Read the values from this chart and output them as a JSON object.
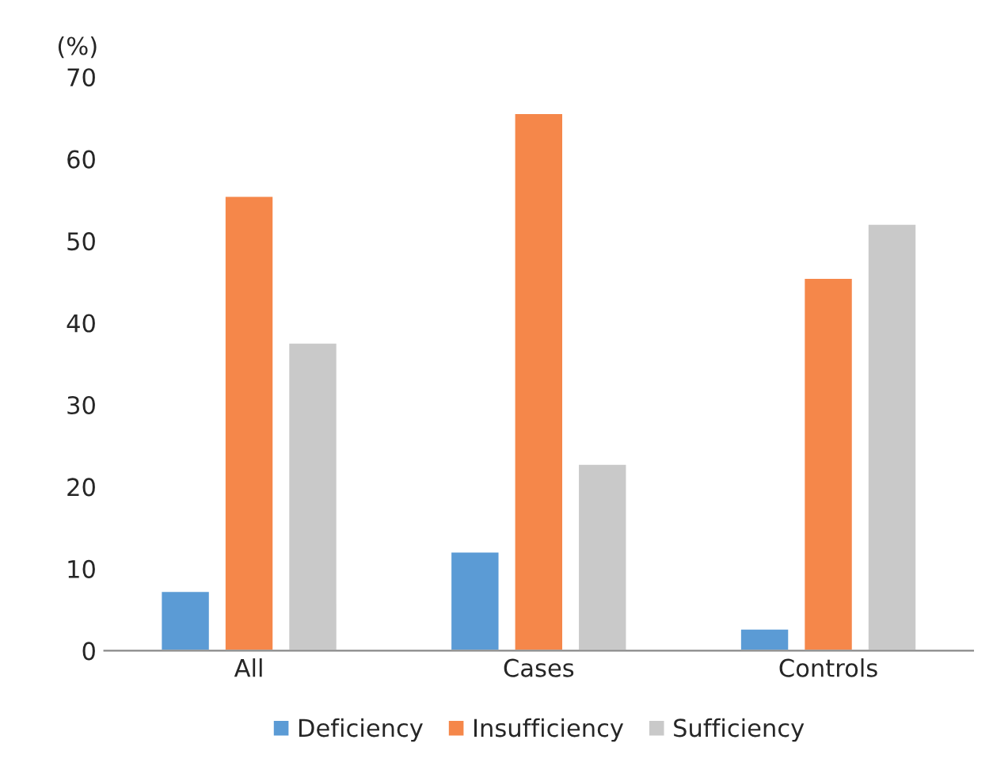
{
  "chart_data": {
    "type": "bar",
    "ylabel": "(%)",
    "categories": [
      "All",
      "Cases",
      "Controls"
    ],
    "series": [
      {
        "name": "Deficiency",
        "color": "#5b9bd5",
        "values": [
          7.3,
          12.1,
          2.7
        ]
      },
      {
        "name": "Insufficiency",
        "color": "#f5874a",
        "values": [
          55.5,
          65.6,
          45.5
        ]
      },
      {
        "name": "Sufficiency",
        "color": "#c9c9c9",
        "values": [
          37.6,
          22.8,
          52.1
        ]
      }
    ],
    "ylim": [
      0,
      70
    ],
    "yticks": [
      0,
      10,
      20,
      30,
      40,
      50,
      60,
      70
    ],
    "grid": false,
    "legend": "bottom"
  }
}
